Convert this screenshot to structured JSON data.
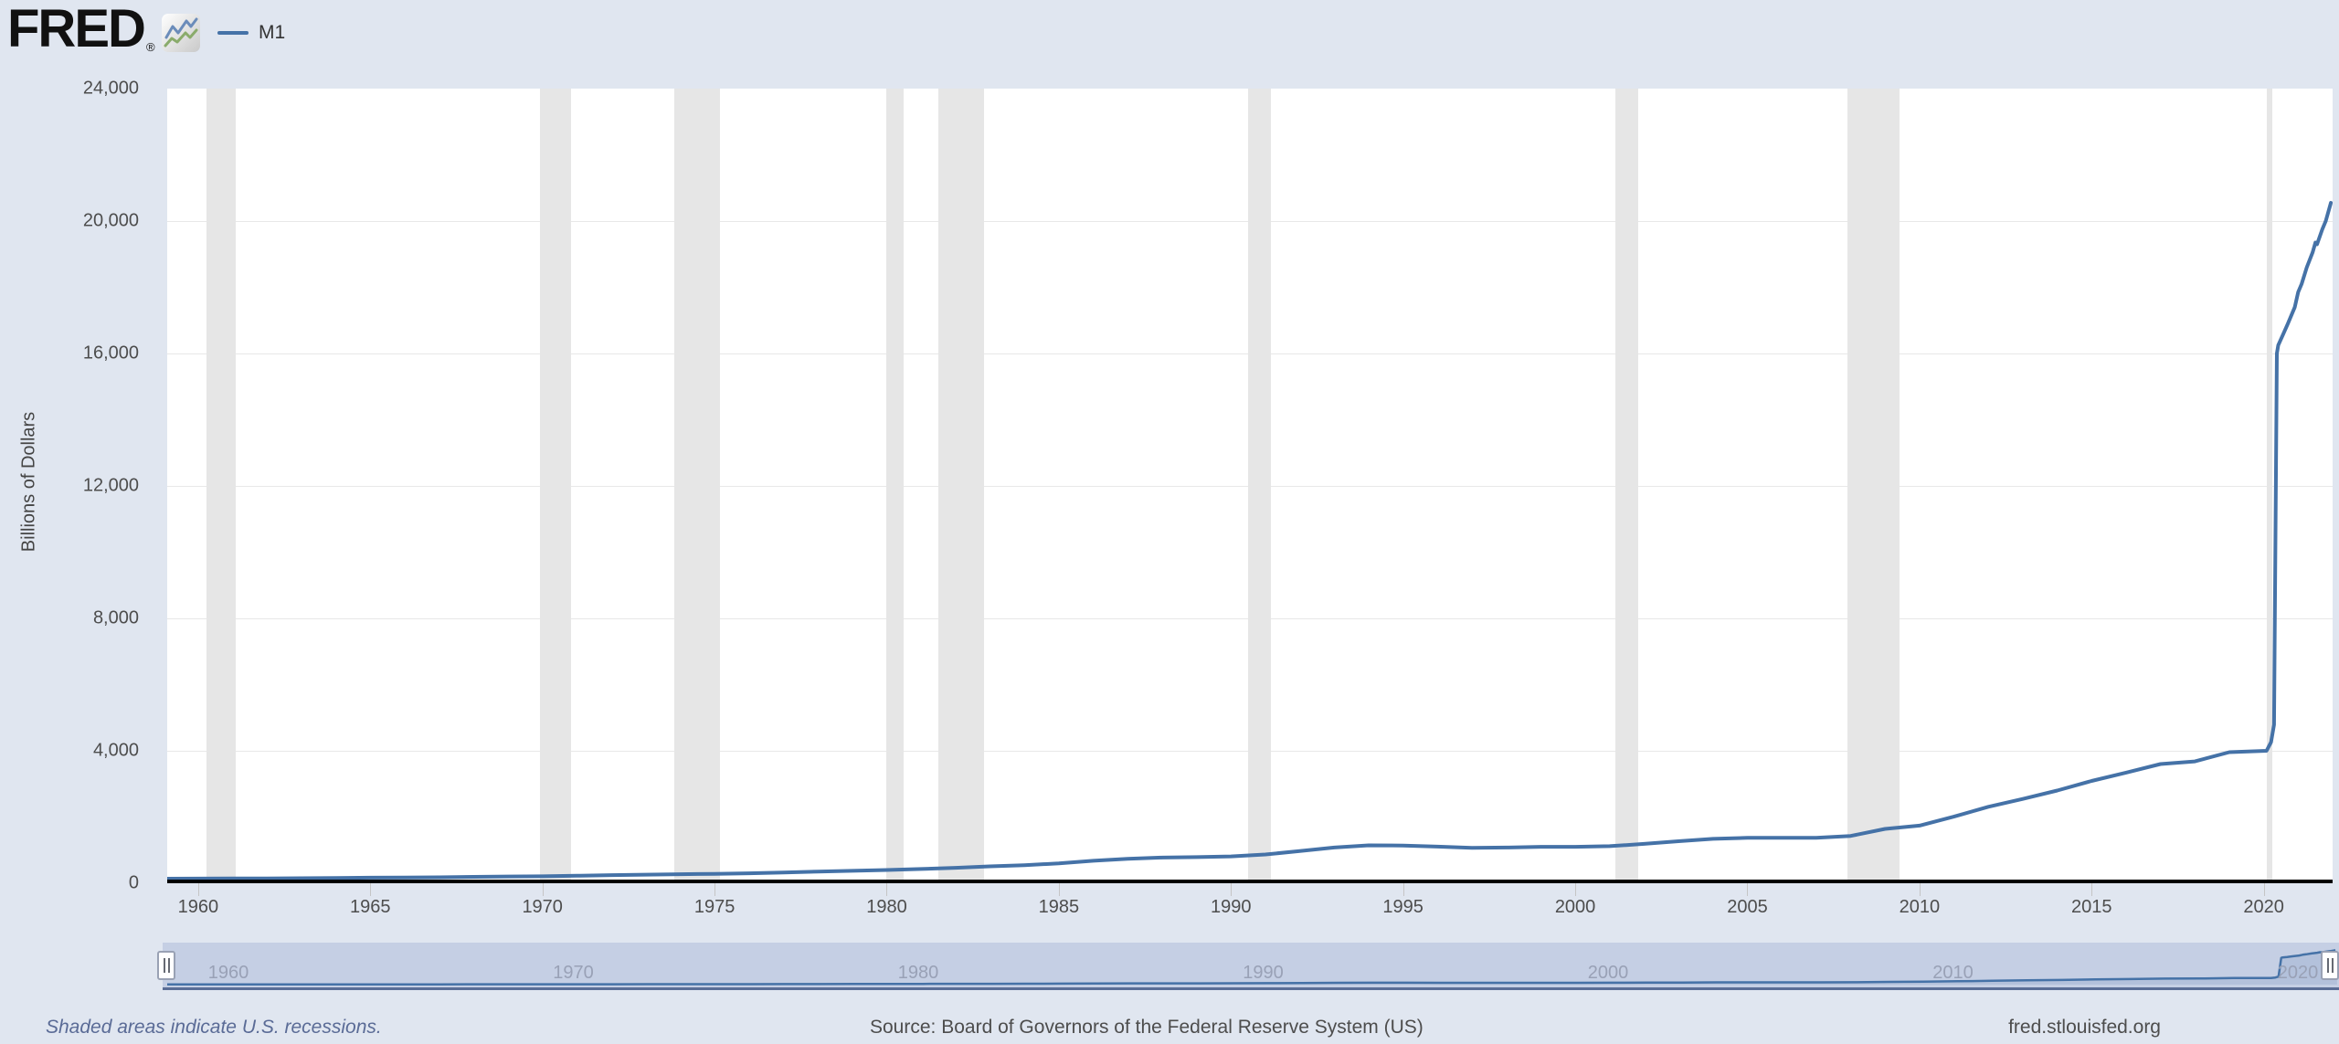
{
  "header": {
    "logo_text": "FRED",
    "registered_mark": "®",
    "legend": {
      "series_label": "M1",
      "series_color": "#4572a7"
    }
  },
  "chart_data": {
    "type": "line",
    "title": "M1",
    "ylabel": "Billions of Dollars",
    "xlim": [
      1959.1,
      2022.0
    ],
    "ylim": [
      0,
      24000
    ],
    "grid": true,
    "x_ticks": [
      {
        "value": 1960,
        "label": "1960"
      },
      {
        "value": 1965,
        "label": "1965"
      },
      {
        "value": 1970,
        "label": "1970"
      },
      {
        "value": 1975,
        "label": "1975"
      },
      {
        "value": 1980,
        "label": "1980"
      },
      {
        "value": 1985,
        "label": "1985"
      },
      {
        "value": 1990,
        "label": "1990"
      },
      {
        "value": 1995,
        "label": "1995"
      },
      {
        "value": 2000,
        "label": "2000"
      },
      {
        "value": 2005,
        "label": "2005"
      },
      {
        "value": 2010,
        "label": "2010"
      },
      {
        "value": 2015,
        "label": "2015"
      },
      {
        "value": 2020,
        "label": "2020"
      }
    ],
    "y_ticks": [
      {
        "value": 0,
        "label": "0"
      },
      {
        "value": 4000,
        "label": "4,000"
      },
      {
        "value": 8000,
        "label": "8,000"
      },
      {
        "value": 12000,
        "label": "12,000"
      },
      {
        "value": 16000,
        "label": "16,000"
      },
      {
        "value": 20000,
        "label": "20,000"
      },
      {
        "value": 24000,
        "label": "24,000"
      }
    ],
    "series": [
      {
        "name": "M1",
        "color": "#4572a7",
        "units": "Billions of Dollars",
        "points": [
          [
            1959.1,
            139
          ],
          [
            1960,
            140
          ],
          [
            1961,
            143
          ],
          [
            1962,
            147
          ],
          [
            1963,
            151
          ],
          [
            1964,
            157
          ],
          [
            1965,
            167
          ],
          [
            1966,
            172
          ],
          [
            1967,
            180
          ],
          [
            1968,
            193
          ],
          [
            1969,
            204
          ],
          [
            1970,
            210
          ],
          [
            1971,
            225
          ],
          [
            1972,
            245
          ],
          [
            1973,
            260
          ],
          [
            1974,
            272
          ],
          [
            1975,
            283
          ],
          [
            1976,
            300
          ],
          [
            1977,
            325
          ],
          [
            1978,
            352
          ],
          [
            1979,
            375
          ],
          [
            1980,
            400
          ],
          [
            1981,
            430
          ],
          [
            1982,
            465
          ],
          [
            1983,
            510
          ],
          [
            1984,
            545
          ],
          [
            1985,
            600
          ],
          [
            1986,
            680
          ],
          [
            1987,
            740
          ],
          [
            1988,
            775
          ],
          [
            1989,
            790
          ],
          [
            1990,
            810
          ],
          [
            1991,
            870
          ],
          [
            1992,
            970
          ],
          [
            1993,
            1080
          ],
          [
            1994,
            1145
          ],
          [
            1995,
            1140
          ],
          [
            1996,
            1105
          ],
          [
            1997,
            1070
          ],
          [
            1998,
            1080
          ],
          [
            1999,
            1100
          ],
          [
            2000,
            1100
          ],
          [
            2001,
            1120
          ],
          [
            2002,
            1190
          ],
          [
            2003,
            1270
          ],
          [
            2004,
            1340
          ],
          [
            2005,
            1370
          ],
          [
            2006,
            1375
          ],
          [
            2007,
            1370
          ],
          [
            2008,
            1430
          ],
          [
            2009,
            1640
          ],
          [
            2010,
            1740
          ],
          [
            2011,
            2010
          ],
          [
            2012,
            2310
          ],
          [
            2013,
            2545
          ],
          [
            2014,
            2800
          ],
          [
            2015,
            3090
          ],
          [
            2016,
            3340
          ],
          [
            2017,
            3600
          ],
          [
            2018,
            3680
          ],
          [
            2019,
            3960
          ],
          [
            2020.08,
            4000
          ],
          [
            2020.21,
            4260
          ],
          [
            2020.3,
            4790
          ],
          [
            2020.38,
            16000
          ],
          [
            2020.42,
            16250
          ],
          [
            2020.55,
            16550
          ],
          [
            2020.7,
            16900
          ],
          [
            2020.9,
            17400
          ],
          [
            2021.0,
            17850
          ],
          [
            2021.1,
            18100
          ],
          [
            2021.25,
            18600
          ],
          [
            2021.42,
            19050
          ],
          [
            2021.5,
            19350
          ],
          [
            2021.55,
            19300
          ],
          [
            2021.7,
            19750
          ],
          [
            2021.8,
            20000
          ],
          [
            2021.95,
            20550
          ]
        ]
      }
    ],
    "recessions": [
      [
        1960.25,
        1961.08
      ],
      [
        1969.92,
        1970.83
      ],
      [
        1973.83,
        1975.17
      ],
      [
        1980.0,
        1980.5
      ],
      [
        1981.5,
        1982.83
      ],
      [
        1990.5,
        1991.17
      ],
      [
        2001.17,
        2001.83
      ],
      [
        2007.92,
        2009.42
      ],
      [
        2020.08,
        2020.25
      ]
    ],
    "legend_position": "top-left",
    "note": "Shaded areas indicate U.S. recessions."
  },
  "slider": {
    "decade_labels": [
      "1960",
      "1970",
      "1980",
      "1990",
      "2000",
      "2010",
      "2020"
    ]
  },
  "footer": {
    "recession_note": "Shaded areas indicate U.S. recessions.",
    "source": "Source: Board of Governors of the Federal Reserve System (US)",
    "site": "fred.stlouisfed.org"
  },
  "colors": {
    "background": "#e0e6f0",
    "plot_background": "#ffffff",
    "gridline": "#e8e8e8",
    "recession_band": "#e6e6e6",
    "series_line": "#4572a7",
    "zero_axis": "#000000",
    "slider_band": "#c5cfe4",
    "slider_border": "#5a6d96",
    "slider_label": "#99a1b6"
  }
}
